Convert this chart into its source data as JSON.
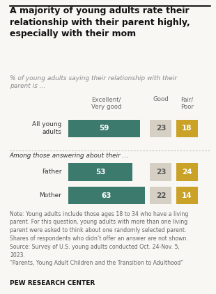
{
  "title": "A majority of young adults rate their\nrelationship with their parent highly,\nespecially with their mom",
  "subtitle": "% of young adults saying their relationship with their\nparent is ...",
  "col_headers": [
    "Excellent/\nVery good",
    "Good",
    "Fair/\nPoor"
  ],
  "rows": [
    {
      "label": "All young\nadults",
      "values": [
        59,
        23,
        18
      ]
    },
    {
      "label": "Father",
      "values": [
        53,
        23,
        24
      ]
    },
    {
      "label": "Mother",
      "values": [
        63,
        22,
        14
      ]
    }
  ],
  "colors": [
    "#3d7a6e",
    "#d6d0c4",
    "#c9a227"
  ],
  "section_label": "Among those answering about their ...",
  "note": "Note: Young adults include those ages 18 to 34 who have a living\nparent. For this question, young adults with more than one living\nparent were asked to think about one randomly selected parent.\nShares of respondents who didn’t offer an answer are not shown.\nSource: Survey of U.S. young adults conducted Oct. 24-Nov. 5,\n2023.\n“Parents, Young Adult Children and the Transition to Adulthood”",
  "footer": "PEW RESEARCH CENTER",
  "bg_color": "#f9f7f4",
  "text_color": "#333333",
  "note_color": "#666666",
  "title_fontsize": 9.0,
  "subtitle_fontsize": 6.5,
  "bar_label_fontsize": 7.5,
  "note_fontsize": 5.6,
  "footer_fontsize": 6.5,
  "col_header_fontsize": 6.2,
  "row_label_fontsize": 6.5
}
